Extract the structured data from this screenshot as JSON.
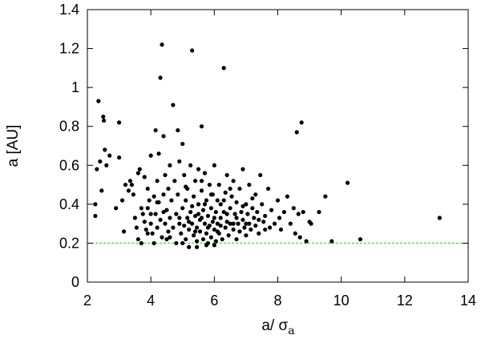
{
  "chart_data": {
    "type": "scatter",
    "xlabel": "a/ σ",
    "xlabel_subscript": "a",
    "ylabel": "a [AU]",
    "xlim": [
      2,
      14
    ],
    "ylim": [
      0,
      1.4
    ],
    "x_ticks": [
      2,
      4,
      6,
      8,
      10,
      12,
      14
    ],
    "y_ticks": [
      0,
      0.2,
      0.4,
      0.6,
      0.8,
      1,
      1.2,
      1.4
    ],
    "x_tick_labels": [
      "2",
      "4",
      "6",
      "8",
      "10",
      "12",
      "14"
    ],
    "y_tick_labels": [
      "0",
      "0.2",
      "0.4",
      "0.6",
      "0.8",
      "1",
      "1.2",
      "1.4"
    ],
    "grid": false,
    "point_color": "#000000",
    "reference_line": {
      "y": 0.2,
      "color": "#22cc22",
      "style": "dashed"
    },
    "points": [
      [
        2.25,
        0.4
      ],
      [
        2.25,
        0.34
      ],
      [
        2.3,
        0.58
      ],
      [
        2.35,
        0.93
      ],
      [
        2.4,
        0.62
      ],
      [
        2.45,
        0.47
      ],
      [
        2.5,
        0.85
      ],
      [
        2.52,
        0.83
      ],
      [
        2.55,
        0.68
      ],
      [
        2.6,
        0.6
      ],
      [
        2.7,
        0.65
      ],
      [
        2.9,
        0.38
      ],
      [
        3.0,
        0.82
      ],
      [
        3.0,
        0.64
      ],
      [
        3.1,
        0.42
      ],
      [
        3.15,
        0.26
      ],
      [
        3.2,
        0.5
      ],
      [
        3.3,
        0.47
      ],
      [
        3.35,
        0.52
      ],
      [
        3.4,
        0.5
      ],
      [
        3.45,
        0.45
      ],
      [
        3.5,
        0.33
      ],
      [
        3.55,
        0.28
      ],
      [
        3.6,
        0.22
      ],
      [
        3.6,
        0.56
      ],
      [
        3.65,
        0.58
      ],
      [
        3.7,
        0.38
      ],
      [
        3.7,
        0.2
      ],
      [
        3.75,
        0.35
      ],
      [
        3.8,
        0.31
      ],
      [
        3.8,
        0.54
      ],
      [
        3.85,
        0.27
      ],
      [
        3.9,
        0.48
      ],
      [
        3.9,
        0.38
      ],
      [
        3.95,
        0.42
      ],
      [
        4.0,
        0.3
      ],
      [
        4.0,
        0.65
      ],
      [
        4.0,
        0.35
      ],
      [
        4.05,
        0.25
      ],
      [
        4.1,
        0.44
      ],
      [
        4.1,
        0.2
      ],
      [
        4.15,
        0.78
      ],
      [
        4.15,
        0.35
      ],
      [
        4.2,
        0.52
      ],
      [
        4.2,
        0.28
      ],
      [
        4.25,
        0.41
      ],
      [
        4.25,
        0.66
      ],
      [
        4.3,
        0.32
      ],
      [
        4.3,
        1.05
      ],
      [
        4.35,
        0.23
      ],
      [
        4.35,
        1.22
      ],
      [
        4.4,
        0.75
      ],
      [
        4.4,
        0.45
      ],
      [
        4.45,
        0.3
      ],
      [
        4.45,
        0.55
      ],
      [
        4.5,
        0.37
      ],
      [
        4.5,
        0.22
      ],
      [
        4.55,
        0.26
      ],
      [
        4.55,
        0.48
      ],
      [
        4.6,
        0.33
      ],
      [
        4.6,
        0.6
      ],
      [
        4.65,
        0.42
      ],
      [
        4.7,
        0.91
      ],
      [
        4.7,
        0.28
      ],
      [
        4.75,
        0.52
      ],
      [
        4.8,
        0.35
      ],
      [
        4.8,
        0.2
      ],
      [
        4.85,
        0.45
      ],
      [
        4.85,
        0.78
      ],
      [
        4.9,
        0.3
      ],
      [
        4.9,
        0.62
      ],
      [
        4.95,
        0.25
      ],
      [
        5.0,
        0.38
      ],
      [
        5.0,
        0.71
      ],
      [
        5.05,
        0.29
      ],
      [
        5.05,
        0.55
      ],
      [
        5.1,
        0.22
      ],
      [
        5.1,
        0.42
      ],
      [
        5.15,
        0.33
      ],
      [
        5.15,
        0.48
      ],
      [
        5.2,
        0.27
      ],
      [
        5.2,
        0.18
      ],
      [
        5.25,
        0.36
      ],
      [
        5.25,
        0.6
      ],
      [
        5.3,
        1.19
      ],
      [
        5.3,
        0.3
      ],
      [
        5.35,
        0.44
      ],
      [
        5.35,
        0.24
      ],
      [
        5.4,
        0.52
      ],
      [
        5.4,
        0.34
      ],
      [
        5.45,
        0.28
      ],
      [
        5.45,
        0.21
      ],
      [
        5.5,
        0.4
      ],
      [
        5.5,
        0.58
      ],
      [
        5.55,
        0.32
      ],
      [
        5.55,
        0.26
      ],
      [
        5.6,
        0.8
      ],
      [
        5.6,
        0.47
      ],
      [
        5.65,
        0.22
      ],
      [
        5.65,
        0.37
      ],
      [
        5.7,
        0.3
      ],
      [
        5.7,
        0.56
      ],
      [
        5.75,
        0.42
      ],
      [
        5.75,
        0.25
      ],
      [
        5.8,
        0.34
      ],
      [
        5.8,
        0.2
      ],
      [
        5.85,
        0.5
      ],
      [
        5.85,
        0.29
      ],
      [
        5.9,
        0.38
      ],
      [
        5.9,
        0.23
      ],
      [
        5.95,
        0.45
      ],
      [
        5.95,
        0.31
      ],
      [
        6.0,
        0.27
      ],
      [
        6.0,
        0.6
      ],
      [
        6.05,
        0.36
      ],
      [
        6.05,
        0.21
      ],
      [
        6.1,
        0.42
      ],
      [
        6.1,
        0.3
      ],
      [
        6.15,
        0.5
      ],
      [
        6.15,
        0.25
      ],
      [
        6.2,
        0.33
      ],
      [
        6.2,
        0.4
      ],
      [
        6.25,
        0.22
      ],
      [
        6.3,
        1.1
      ],
      [
        6.3,
        0.36
      ],
      [
        6.35,
        0.28
      ],
      [
        6.35,
        0.46
      ],
      [
        6.4,
        0.31
      ],
      [
        6.4,
        0.55
      ],
      [
        6.45,
        0.24
      ],
      [
        6.5,
        0.38
      ],
      [
        6.5,
        0.3
      ],
      [
        6.55,
        0.44
      ],
      [
        6.6,
        0.27
      ],
      [
        6.6,
        0.52
      ],
      [
        6.65,
        0.35
      ],
      [
        6.7,
        0.22
      ],
      [
        6.7,
        0.41
      ],
      [
        6.75,
        0.3
      ],
      [
        6.8,
        0.48
      ],
      [
        6.8,
        0.26
      ],
      [
        6.85,
        0.36
      ],
      [
        6.9,
        0.32
      ],
      [
        6.9,
        0.58
      ],
      [
        6.95,
        0.28
      ],
      [
        7.0,
        0.4
      ],
      [
        7.0,
        0.24
      ],
      [
        7.05,
        0.35
      ],
      [
        7.1,
        0.3
      ],
      [
        7.1,
        0.5
      ],
      [
        7.15,
        0.27
      ],
      [
        7.2,
        0.38
      ],
      [
        7.25,
        0.33
      ],
      [
        7.3,
        0.29
      ],
      [
        7.3,
        0.45
      ],
      [
        7.35,
        0.36
      ],
      [
        7.4,
        0.25
      ],
      [
        7.45,
        0.55
      ],
      [
        7.5,
        0.4
      ],
      [
        7.55,
        0.31
      ],
      [
        7.6,
        0.34
      ],
      [
        7.7,
        0.48
      ],
      [
        7.75,
        0.28
      ],
      [
        7.8,
        0.37
      ],
      [
        7.9,
        0.3
      ],
      [
        8.0,
        0.42
      ],
      [
        8.05,
        0.33
      ],
      [
        8.1,
        0.27
      ],
      [
        8.2,
        0.36
      ],
      [
        8.3,
        0.44
      ],
      [
        8.4,
        0.3
      ],
      [
        8.5,
        0.38
      ],
      [
        8.55,
        0.25
      ],
      [
        8.6,
        0.77
      ],
      [
        8.65,
        0.35
      ],
      [
        8.7,
        0.23
      ],
      [
        8.75,
        0.82
      ],
      [
        8.8,
        0.36
      ],
      [
        8.9,
        0.21
      ],
      [
        9.0,
        0.31
      ],
      [
        9.05,
        0.3
      ],
      [
        9.3,
        0.36
      ],
      [
        9.5,
        0.44
      ],
      [
        9.7,
        0.21
      ],
      [
        10.2,
        0.51
      ],
      [
        10.6,
        0.22
      ],
      [
        13.1,
        0.33
      ],
      [
        5.2,
        0.31
      ],
      [
        5.4,
        0.26
      ],
      [
        5.6,
        0.33
      ],
      [
        5.8,
        0.28
      ],
      [
        6.0,
        0.33
      ],
      [
        6.2,
        0.29
      ],
      [
        6.4,
        0.35
      ],
      [
        6.6,
        0.3
      ],
      [
        5.0,
        0.2
      ],
      [
        4.9,
        0.33
      ],
      [
        5.5,
        0.35
      ],
      [
        6.1,
        0.26
      ],
      [
        6.7,
        0.33
      ],
      [
        7.0,
        0.3
      ],
      [
        5.3,
        0.39
      ],
      [
        5.7,
        0.4
      ],
      [
        6.3,
        0.42
      ],
      [
        4.6,
        0.23
      ],
      [
        4.4,
        0.36
      ],
      [
        5.9,
        0.45
      ],
      [
        6.9,
        0.39
      ],
      [
        7.2,
        0.43
      ],
      [
        3.9,
        0.25
      ],
      [
        4.2,
        0.41
      ],
      [
        5.1,
        0.49
      ],
      [
        5.6,
        0.52
      ],
      [
        6.5,
        0.48
      ],
      [
        7.4,
        0.32
      ],
      [
        7.6,
        0.27
      ],
      [
        6.0,
        0.19
      ],
      [
        5.45,
        0.18
      ],
      [
        5.75,
        0.19
      ]
    ]
  }
}
